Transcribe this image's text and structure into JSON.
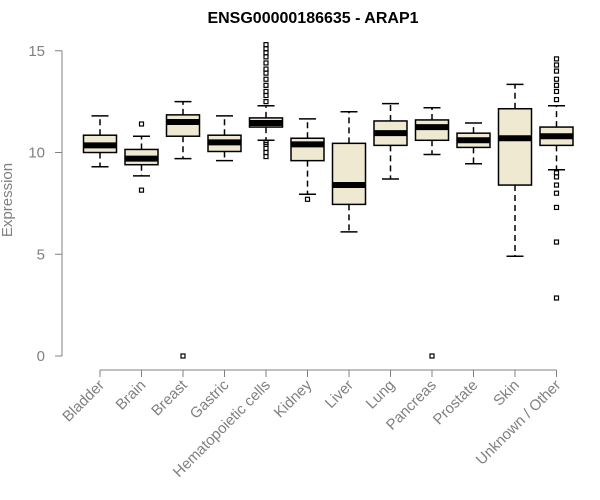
{
  "chart_data": {
    "type": "boxplot",
    "title": "ENSG00000186635 - ARAP1",
    "xlabel": "",
    "ylabel": "Expression",
    "ylim": [
      0,
      15
    ],
    "yticks": [
      0,
      5,
      10,
      15
    ],
    "grid": false,
    "box_fill": "#efe9d2",
    "categories": [
      "Bladder",
      "Brain",
      "Breast",
      "Gastric",
      "Hematopoietic cells",
      "Kidney",
      "Liver",
      "Lung",
      "Pancreas",
      "Prostate",
      "Skin",
      "Unknown / Other"
    ],
    "boxes": [
      {
        "min": 9.3,
        "q1": 10.0,
        "median": 10.35,
        "q3": 10.85,
        "max": 11.8,
        "outliers": []
      },
      {
        "min": 8.85,
        "q1": 9.4,
        "median": 9.7,
        "q3": 10.15,
        "max": 10.8,
        "outliers": [
          8.15,
          11.4
        ]
      },
      {
        "min": 9.7,
        "q1": 10.8,
        "median": 11.5,
        "q3": 11.85,
        "max": 12.5,
        "outliers": [
          0.0
        ]
      },
      {
        "min": 9.6,
        "q1": 10.05,
        "median": 10.5,
        "q3": 10.85,
        "max": 11.8,
        "outliers": []
      },
      {
        "min": 10.6,
        "q1": 11.25,
        "median": 11.45,
        "q3": 11.7,
        "max": 12.3,
        "outliers": [
          9.8,
          10.0,
          10.2,
          10.4,
          10.5,
          12.5,
          12.8,
          13.0,
          13.3,
          13.6,
          13.9,
          14.1,
          14.4,
          14.7,
          14.9,
          15.1,
          15.3
        ]
      },
      {
        "min": 7.95,
        "q1": 9.6,
        "median": 10.4,
        "q3": 10.7,
        "max": 11.65,
        "outliers": [
          7.7
        ]
      },
      {
        "min": 6.1,
        "q1": 7.45,
        "median": 8.4,
        "q3": 10.45,
        "max": 12.0,
        "outliers": []
      },
      {
        "min": 8.7,
        "q1": 10.35,
        "median": 10.95,
        "q3": 11.55,
        "max": 12.4,
        "outliers": []
      },
      {
        "min": 9.9,
        "q1": 10.6,
        "median": 11.25,
        "q3": 11.6,
        "max": 12.2,
        "outliers": [
          0.0
        ]
      },
      {
        "min": 9.45,
        "q1": 10.25,
        "median": 10.6,
        "q3": 10.95,
        "max": 11.45,
        "outliers": []
      },
      {
        "min": 4.9,
        "q1": 8.4,
        "median": 10.7,
        "q3": 12.15,
        "max": 13.35,
        "outliers": []
      },
      {
        "min": 9.15,
        "q1": 10.35,
        "median": 10.8,
        "q3": 11.25,
        "max": 12.3,
        "outliers": [
          2.85,
          5.6,
          7.3,
          8.0,
          8.4,
          8.8,
          9.0,
          12.6,
          13.0,
          13.3,
          13.6,
          14.0,
          14.3,
          14.6
        ]
      }
    ]
  }
}
